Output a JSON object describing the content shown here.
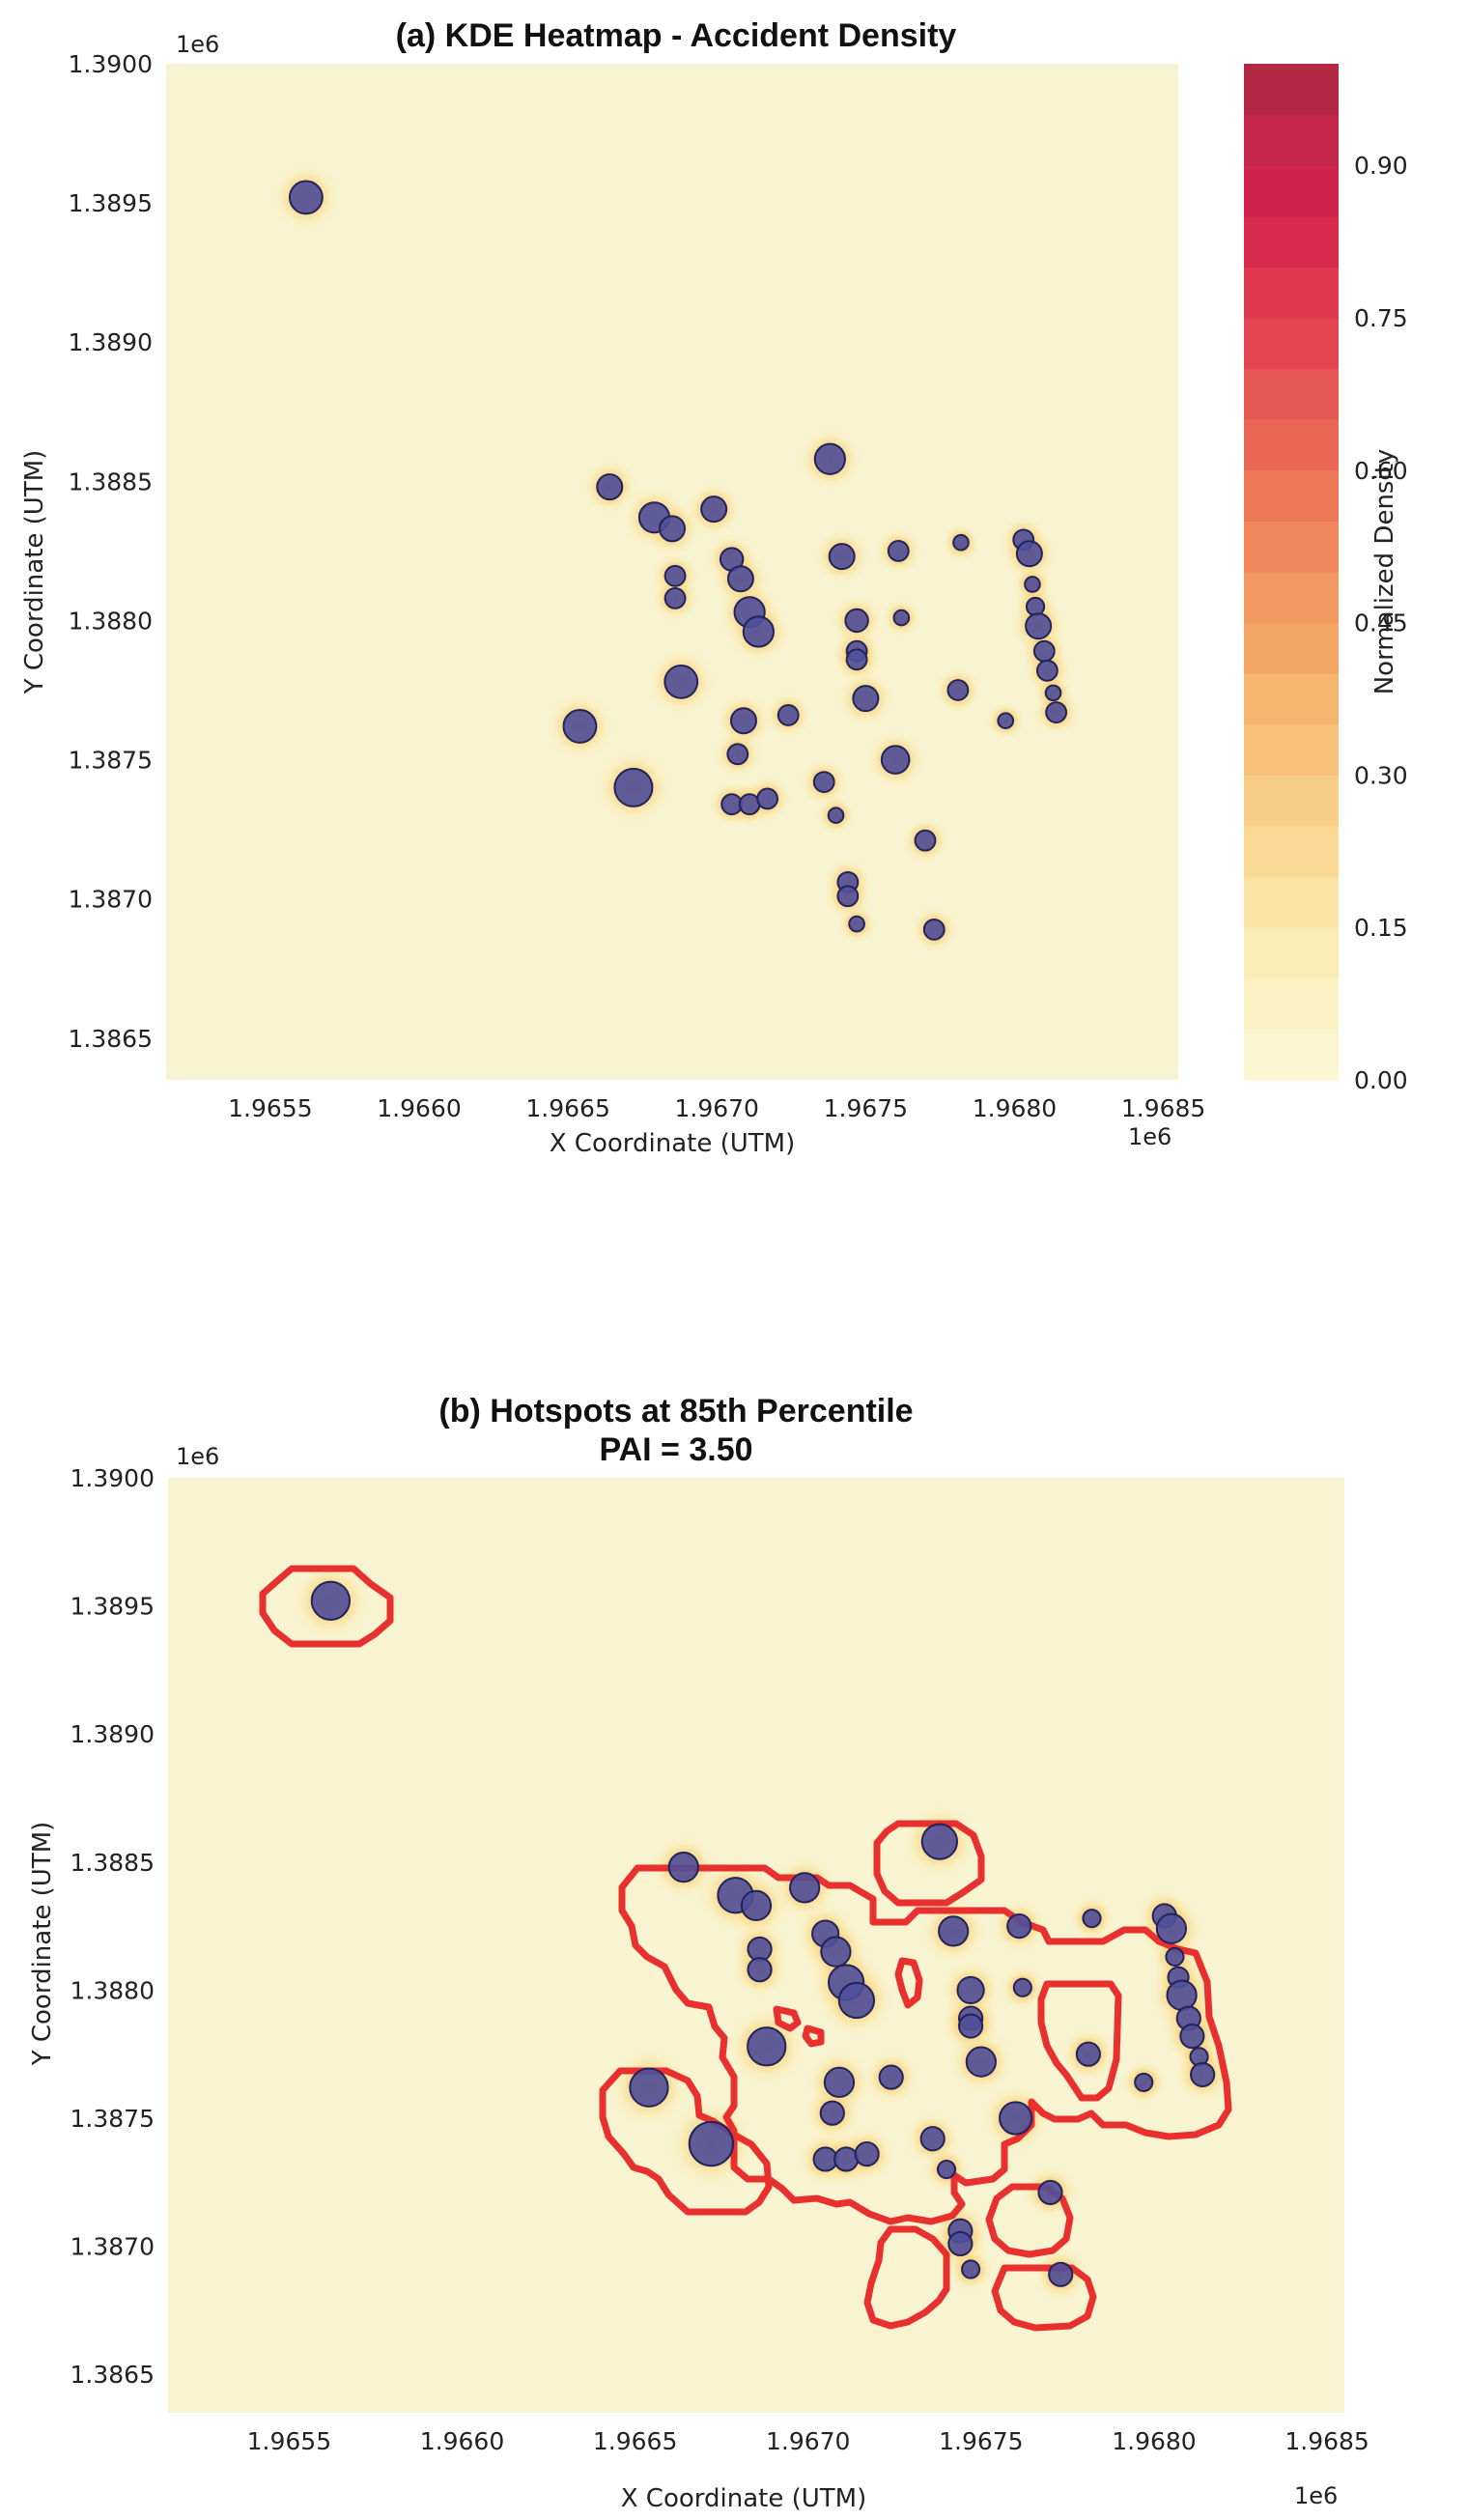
{
  "chart_data": [
    {
      "type": "heatmap",
      "title": "(a) KDE Heatmap - Accident Density",
      "xlabel": "X Coordinate (UTM)",
      "ylabel": "Y Coordinate (UTM)",
      "x_offset_label": "1e6",
      "y_offset_label": "1e6",
      "xlim": [
        1.96515,
        1.96855
      ],
      "ylim": [
        1.38635,
        1.39
      ],
      "x_ticks": [
        1.9655,
        1.966,
        1.9665,
        1.967,
        1.9675,
        1.968,
        1.9685
      ],
      "x_tick_labels": [
        "1.9655",
        "1.9660",
        "1.9665",
        "1.9670",
        "1.9675",
        "1.9680",
        "1.9685"
      ],
      "y_ticks": [
        1.3865,
        1.387,
        1.3875,
        1.388,
        1.3885,
        1.389,
        1.3895,
        1.39
      ],
      "y_tick_labels": [
        "1.3865",
        "1.3870",
        "1.3875",
        "1.3880",
        "1.3885",
        "1.3890",
        "1.3895",
        "1.3900"
      ],
      "grid": false,
      "colorbar": {
        "label": "Normalized Density",
        "range": [
          0,
          1.0
        ],
        "ticks": [
          0.0,
          0.15,
          0.3,
          0.45,
          0.6,
          0.75,
          0.9
        ],
        "tick_labels": [
          "0.00",
          "0.15",
          "0.30",
          "0.45",
          "0.60",
          "0.75",
          "0.90"
        ],
        "colors": [
          "#fbf6d2",
          "#fbe9ae",
          "#f9d189",
          "#f7b46e",
          "#f1905e",
          "#ea6a55",
          "#e34150",
          "#d6234d",
          "#b52844"
        ]
      },
      "colors": {
        "point_fill": "#4f4f9b",
        "point_edge": "#23235a",
        "background": "#f8f4d2"
      }
    },
    {
      "type": "scatter",
      "title": "(b) Hotspots at 85th Percentile",
      "subtitle": "PAI = 3.50",
      "xlabel": "X Coordinate (UTM)",
      "ylabel": "Y Coordinate (UTM)",
      "x_offset_label": "1e6",
      "y_offset_label": "1e6",
      "xlim": [
        1.96515,
        1.96855
      ],
      "ylim": [
        1.38635,
        1.39
      ],
      "x_ticks": [
        1.9655,
        1.966,
        1.9665,
        1.967,
        1.9675,
        1.968,
        1.9685
      ],
      "x_tick_labels": [
        "1.9655",
        "1.9660",
        "1.9665",
        "1.9670",
        "1.9675",
        "1.9680",
        "1.9685"
      ],
      "y_ticks": [
        1.3865,
        1.387,
        1.3875,
        1.388,
        1.3885,
        1.389,
        1.3895,
        1.39
      ],
      "y_tick_labels": [
        "1.3865",
        "1.3870",
        "1.3875",
        "1.3880",
        "1.3885",
        "1.3890",
        "1.3895",
        "1.3900"
      ],
      "grid": false,
      "percentile": 85,
      "colors": {
        "contour": "#e8302f",
        "point_fill": "#4f4f9b",
        "point_edge": "#23235a",
        "background": "#f8f4d2"
      }
    }
  ],
  "accident_points": [
    {
      "x": 1.96562,
      "y": 1.38952,
      "weight": 1.3
    },
    {
      "x": 1.96664,
      "y": 1.38848,
      "weight": 1.0
    },
    {
      "x": 1.96679,
      "y": 1.38837,
      "weight": 1.2
    },
    {
      "x": 1.96685,
      "y": 1.38833,
      "weight": 1.0
    },
    {
      "x": 1.96699,
      "y": 1.3884,
      "weight": 1.0
    },
    {
      "x": 1.96686,
      "y": 1.38816,
      "weight": 0.8
    },
    {
      "x": 1.96686,
      "y": 1.38808,
      "weight": 0.8
    },
    {
      "x": 1.96705,
      "y": 1.38822,
      "weight": 0.9
    },
    {
      "x": 1.96708,
      "y": 1.38815,
      "weight": 1.0
    },
    {
      "x": 1.96711,
      "y": 1.38803,
      "weight": 1.2
    },
    {
      "x": 1.96714,
      "y": 1.38796,
      "weight": 1.2
    },
    {
      "x": 1.96738,
      "y": 1.38858,
      "weight": 1.2
    },
    {
      "x": 1.96742,
      "y": 1.38823,
      "weight": 1.0
    },
    {
      "x": 1.96761,
      "y": 1.38825,
      "weight": 0.8
    },
    {
      "x": 1.96782,
      "y": 1.38828,
      "weight": 0.6
    },
    {
      "x": 1.96803,
      "y": 1.38829,
      "weight": 0.8
    },
    {
      "x": 1.96805,
      "y": 1.38824,
      "weight": 1.0
    },
    {
      "x": 1.96806,
      "y": 1.38813,
      "weight": 0.6
    },
    {
      "x": 1.96807,
      "y": 1.38805,
      "weight": 0.7
    },
    {
      "x": 1.96808,
      "y": 1.38798,
      "weight": 1.0
    },
    {
      "x": 1.9681,
      "y": 1.38789,
      "weight": 0.8
    },
    {
      "x": 1.96811,
      "y": 1.38782,
      "weight": 0.8
    },
    {
      "x": 1.96813,
      "y": 1.38774,
      "weight": 0.6
    },
    {
      "x": 1.96814,
      "y": 1.38767,
      "weight": 0.8
    },
    {
      "x": 1.96747,
      "y": 1.388,
      "weight": 0.9
    },
    {
      "x": 1.96747,
      "y": 1.38789,
      "weight": 0.8
    },
    {
      "x": 1.96747,
      "y": 1.38786,
      "weight": 0.8
    },
    {
      "x": 1.96762,
      "y": 1.38801,
      "weight": 0.6
    },
    {
      "x": 1.96688,
      "y": 1.38778,
      "weight": 1.3
    },
    {
      "x": 1.96709,
      "y": 1.38764,
      "weight": 1.0
    },
    {
      "x": 1.96724,
      "y": 1.38766,
      "weight": 0.8
    },
    {
      "x": 1.9675,
      "y": 1.38772,
      "weight": 1.0
    },
    {
      "x": 1.96781,
      "y": 1.38775,
      "weight": 0.8
    },
    {
      "x": 1.96797,
      "y": 1.38764,
      "weight": 0.6
    },
    {
      "x": 1.96654,
      "y": 1.38762,
      "weight": 1.3
    },
    {
      "x": 1.96672,
      "y": 1.3874,
      "weight": 1.5
    },
    {
      "x": 1.96707,
      "y": 1.38752,
      "weight": 0.8
    },
    {
      "x": 1.96705,
      "y": 1.38734,
      "weight": 0.8
    },
    {
      "x": 1.96711,
      "y": 1.38734,
      "weight": 0.8
    },
    {
      "x": 1.96717,
      "y": 1.38736,
      "weight": 0.8
    },
    {
      "x": 1.96736,
      "y": 1.38742,
      "weight": 0.8
    },
    {
      "x": 1.9674,
      "y": 1.3873,
      "weight": 0.6
    },
    {
      "x": 1.9676,
      "y": 1.3875,
      "weight": 1.1
    },
    {
      "x": 1.9677,
      "y": 1.38721,
      "weight": 0.8
    },
    {
      "x": 1.96744,
      "y": 1.38706,
      "weight": 0.8
    },
    {
      "x": 1.96744,
      "y": 1.38701,
      "weight": 0.8
    },
    {
      "x": 1.96747,
      "y": 1.38691,
      "weight": 0.6
    },
    {
      "x": 1.96773,
      "y": 1.38689,
      "weight": 0.8
    }
  ]
}
